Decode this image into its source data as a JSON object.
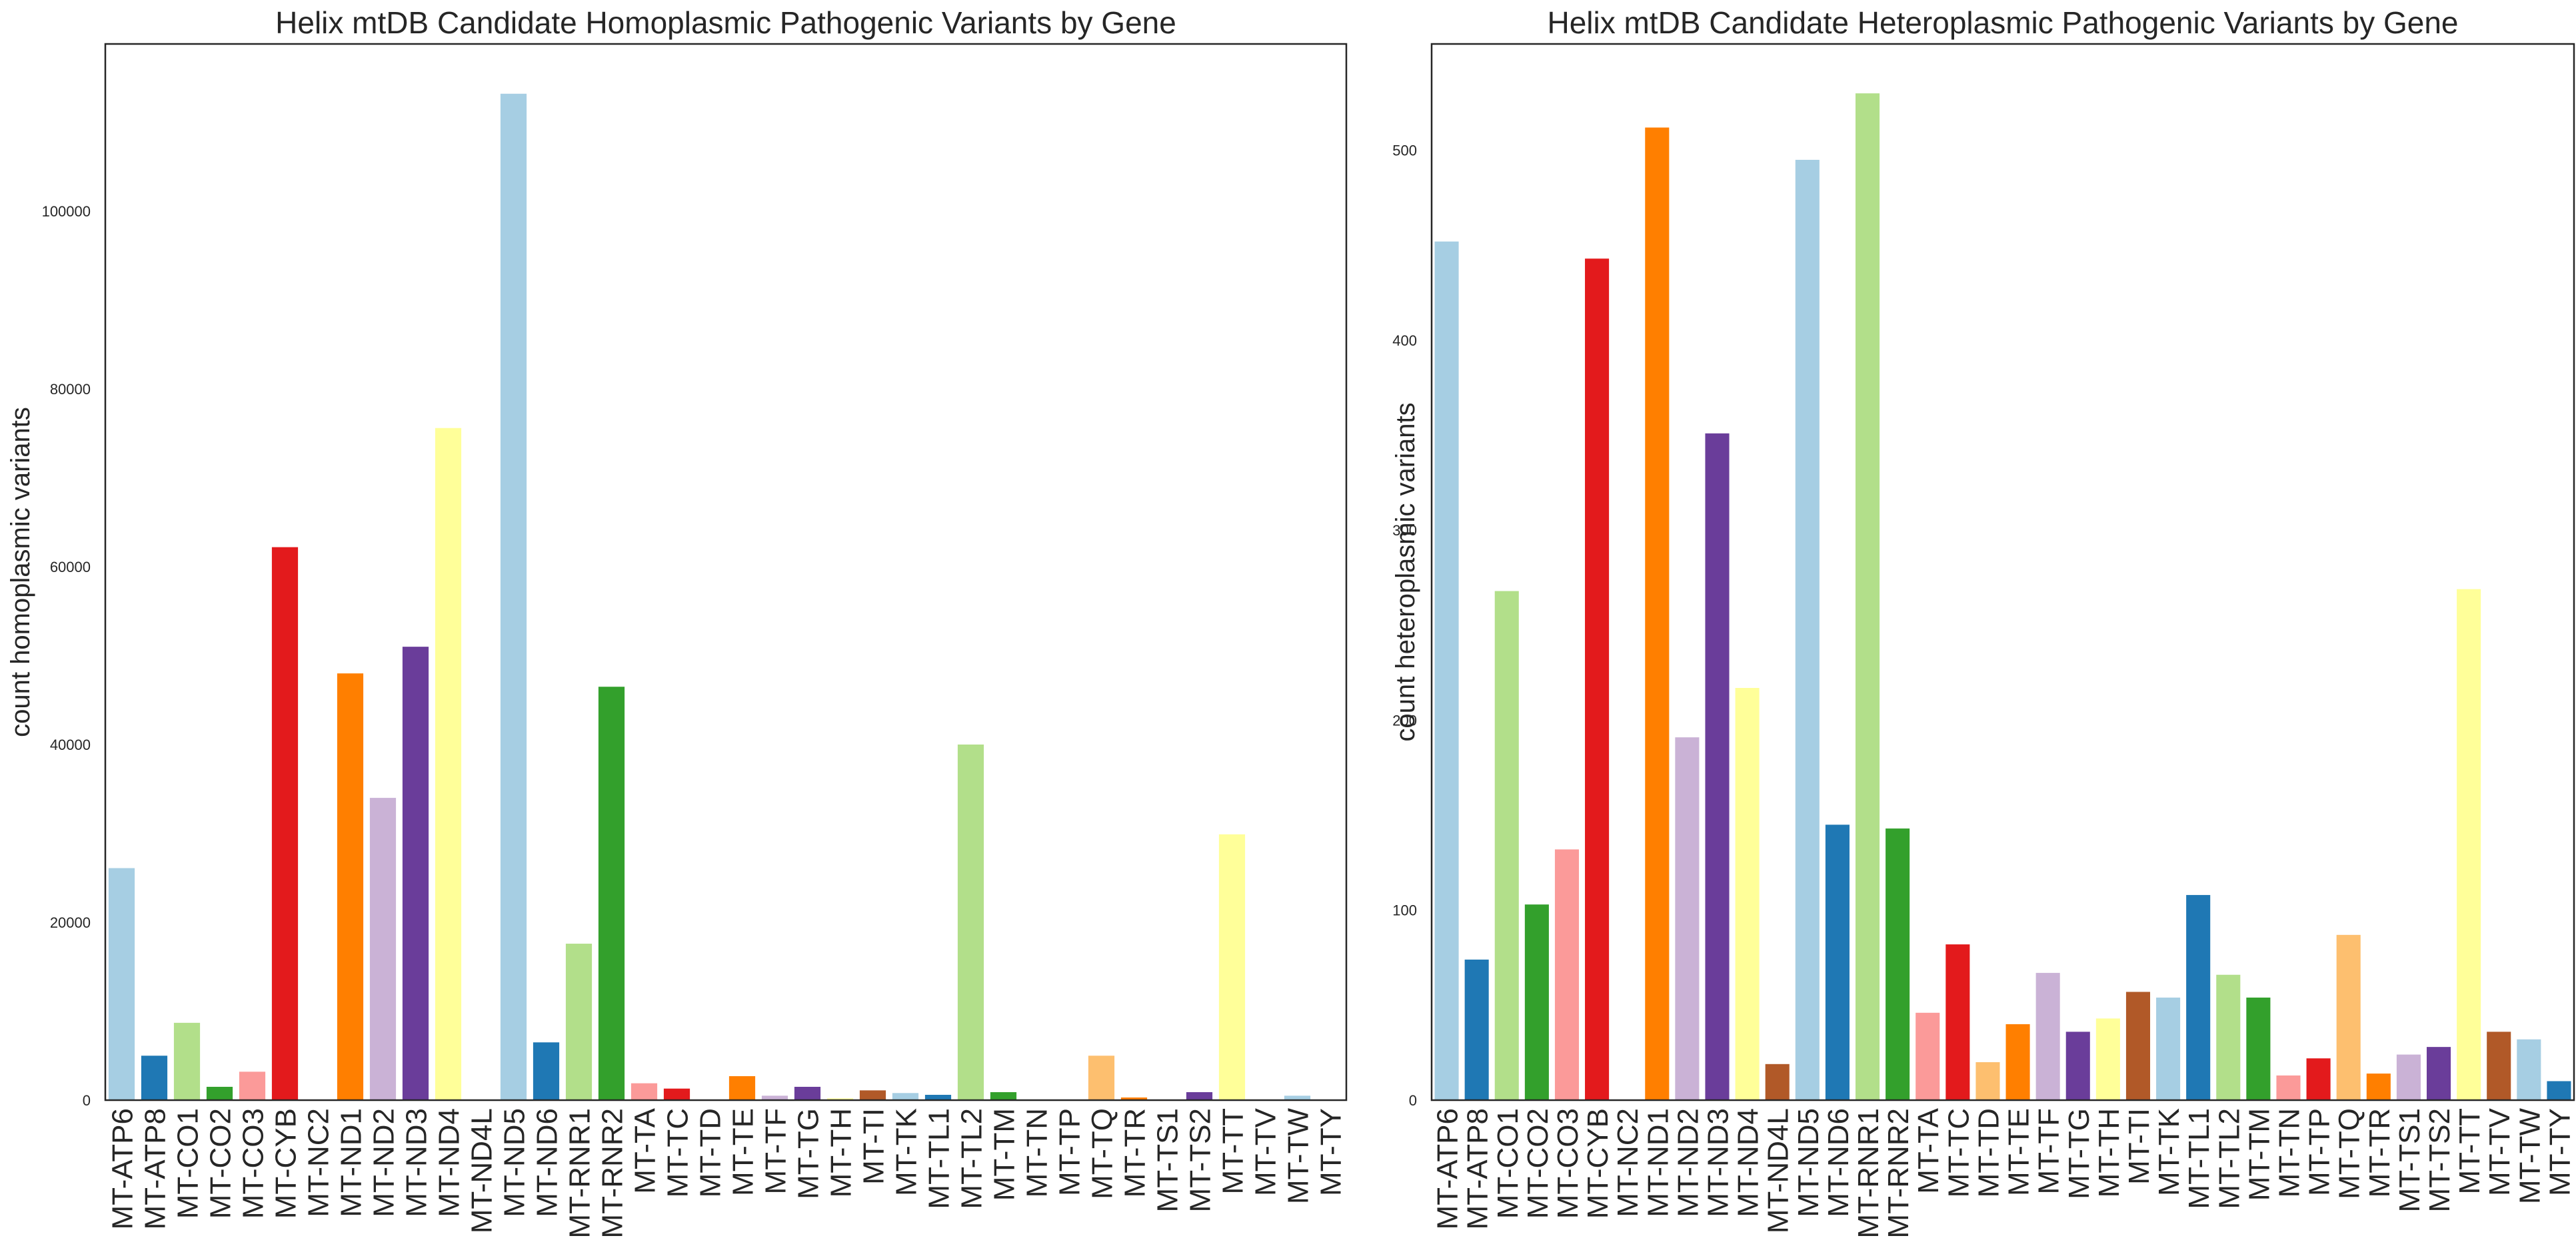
{
  "chart_data": [
    {
      "type": "bar",
      "title": "Helix mtDB Candidate Homoplasmic Pathogenic Variants by Gene",
      "xlabel": "",
      "ylabel": "count homoplasmic variants",
      "ylim": [
        0,
        118800
      ],
      "yticks": [
        0,
        20000,
        40000,
        60000,
        80000,
        100000
      ],
      "grid": false,
      "categories": [
        "MT-ATP6",
        "MT-ATP8",
        "MT-CO1",
        "MT-CO2",
        "MT-CO3",
        "MT-CYB",
        "MT-NC2",
        "MT-ND1",
        "MT-ND2",
        "MT-ND3",
        "MT-ND4",
        "MT-ND4L",
        "MT-ND5",
        "MT-ND6",
        "MT-RNR1",
        "MT-RNR2",
        "MT-TA",
        "MT-TC",
        "MT-TD",
        "MT-TE",
        "MT-TF",
        "MT-TG",
        "MT-TH",
        "MT-TI",
        "MT-TK",
        "MT-TL1",
        "MT-TL2",
        "MT-TM",
        "MT-TN",
        "MT-TP",
        "MT-TQ",
        "MT-TR",
        "MT-TS1",
        "MT-TS2",
        "MT-TT",
        "MT-TV",
        "MT-TW",
        "MT-TY"
      ],
      "values": [
        26100,
        5000,
        8700,
        1500,
        3200,
        62200,
        0,
        48000,
        34000,
        51000,
        75600,
        0,
        113200,
        6500,
        17600,
        46500,
        1900,
        1300,
        0,
        2700,
        500,
        1500,
        200,
        1100,
        800,
        600,
        40000,
        900,
        0,
        0,
        5000,
        300,
        0,
        900,
        29900,
        0,
        500,
        0
      ],
      "colors": [
        "#a6cee3",
        "#1f78b4",
        "#b2df8a",
        "#33a02c",
        "#fb9a99",
        "#e31a1c",
        "#fdbf6f",
        "#ff7f00",
        "#cab2d6",
        "#6a3d9a",
        "#ffff99",
        "#b15928",
        "#a6cee3",
        "#1f78b4",
        "#b2df8a",
        "#33a02c",
        "#fb9a99",
        "#e31a1c",
        "#fdbf6f",
        "#ff7f00",
        "#cab2d6",
        "#6a3d9a",
        "#ffff99",
        "#b15928",
        "#a6cee3",
        "#1f78b4",
        "#b2df8a",
        "#33a02c",
        "#fb9a99",
        "#e31a1c",
        "#fdbf6f",
        "#ff7f00",
        "#cab2d6",
        "#6a3d9a",
        "#ffff99",
        "#b15928",
        "#a6cee3",
        "#1f78b4"
      ]
    },
    {
      "type": "bar",
      "title": "Helix mtDB Candidate Heteroplasmic Pathogenic Variants by Gene",
      "xlabel": "",
      "ylabel": "count heteroplasmic variants",
      "ylim": [
        0,
        556
      ],
      "yticks": [
        0,
        100,
        200,
        300,
        400,
        500
      ],
      "grid": false,
      "categories": [
        "MT-ATP6",
        "MT-ATP8",
        "MT-CO1",
        "MT-CO2",
        "MT-CO3",
        "MT-CYB",
        "MT-NC2",
        "MT-ND1",
        "MT-ND2",
        "MT-ND3",
        "MT-ND4",
        "MT-ND4L",
        "MT-ND5",
        "MT-ND6",
        "MT-RNR1",
        "MT-RNR2",
        "MT-TA",
        "MT-TC",
        "MT-TD",
        "MT-TE",
        "MT-TF",
        "MT-TG",
        "MT-TH",
        "MT-TI",
        "MT-TK",
        "MT-TL1",
        "MT-TL2",
        "MT-TM",
        "MT-TN",
        "MT-TP",
        "MT-TQ",
        "MT-TR",
        "MT-TS1",
        "MT-TS2",
        "MT-TT",
        "MT-TV",
        "MT-TW",
        "MT-TY"
      ],
      "values": [
        452,
        74,
        268,
        103,
        132,
        443,
        0,
        512,
        191,
        351,
        217,
        19,
        495,
        145,
        530,
        143,
        46,
        82,
        20,
        40,
        67,
        36,
        43,
        57,
        54,
        108,
        66,
        54,
        13,
        22,
        87,
        14,
        24,
        28,
        269,
        36,
        32,
        10
      ],
      "colors": [
        "#a6cee3",
        "#1f78b4",
        "#b2df8a",
        "#33a02c",
        "#fb9a99",
        "#e31a1c",
        "#fdbf6f",
        "#ff7f00",
        "#cab2d6",
        "#6a3d9a",
        "#ffff99",
        "#b15928",
        "#a6cee3",
        "#1f78b4",
        "#b2df8a",
        "#33a02c",
        "#fb9a99",
        "#e31a1c",
        "#fdbf6f",
        "#ff7f00",
        "#cab2d6",
        "#6a3d9a",
        "#ffff99",
        "#b15928",
        "#a6cee3",
        "#1f78b4",
        "#b2df8a",
        "#33a02c",
        "#fb9a99",
        "#e31a1c",
        "#fdbf6f",
        "#ff7f00",
        "#cab2d6",
        "#6a3d9a",
        "#ffff99",
        "#b15928",
        "#a6cee3",
        "#1f78b4"
      ]
    }
  ]
}
